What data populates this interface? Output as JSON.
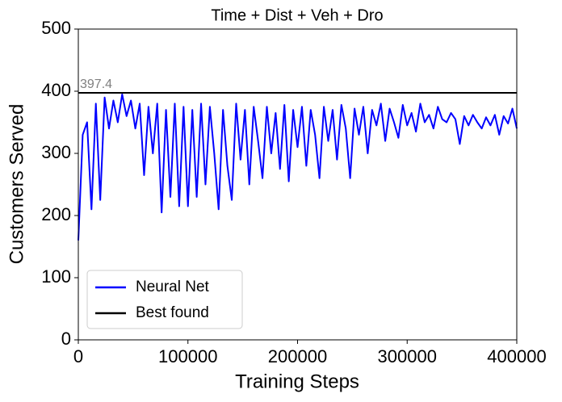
{
  "chart_data": {
    "type": "line",
    "title": "Time + Dist + Veh + Dro",
    "x_label": "Training Steps",
    "y_label": "Customers Served",
    "annotation": "397.4",
    "xlim": [
      0,
      400000
    ],
    "xticks": [
      0,
      100000,
      200000,
      300000,
      400000
    ],
    "ylim": [
      0,
      500
    ],
    "yticks": [
      0,
      100,
      200,
      300,
      400,
      500
    ],
    "legend": "lower left",
    "series": [
      {
        "name": "Neural Net",
        "color": "#0000ff",
        "x": [
          0,
          4000,
          8000,
          12000,
          16000,
          20000,
          24000,
          28000,
          32000,
          36000,
          40000,
          44000,
          48000,
          52000,
          56000,
          60000,
          64000,
          68000,
          72000,
          76000,
          80000,
          84000,
          88000,
          92000,
          96000,
          100000,
          104000,
          108000,
          112000,
          116000,
          120000,
          124000,
          128000,
          132000,
          136000,
          140000,
          144000,
          148000,
          152000,
          156000,
          160000,
          164000,
          168000,
          172000,
          176000,
          180000,
          184000,
          188000,
          192000,
          196000,
          200000,
          204000,
          208000,
          212000,
          216000,
          220000,
          224000,
          228000,
          232000,
          236000,
          240000,
          244000,
          248000,
          252000,
          256000,
          260000,
          264000,
          268000,
          272000,
          276000,
          280000,
          284000,
          288000,
          292000,
          296000,
          300000,
          304000,
          308000,
          312000,
          316000,
          320000,
          324000,
          328000,
          332000,
          336000,
          340000,
          344000,
          348000,
          352000,
          356000,
          360000,
          364000,
          368000,
          372000,
          376000,
          380000,
          384000,
          388000,
          392000,
          396000,
          400000
        ],
        "values": [
          160,
          330,
          350,
          210,
          380,
          225,
          390,
          340,
          385,
          350,
          395,
          360,
          385,
          340,
          380,
          265,
          375,
          300,
          380,
          205,
          370,
          230,
          380,
          215,
          375,
          215,
          370,
          230,
          380,
          250,
          375,
          300,
          210,
          370,
          280,
          225,
          380,
          290,
          370,
          250,
          375,
          320,
          260,
          375,
          300,
          365,
          275,
          378,
          255,
          370,
          310,
          375,
          280,
          370,
          330,
          260,
          375,
          320,
          370,
          290,
          378,
          340,
          260,
          372,
          330,
          375,
          300,
          370,
          345,
          380,
          320,
          372,
          350,
          325,
          378,
          345,
          365,
          335,
          380,
          350,
          362,
          340,
          375,
          355,
          350,
          365,
          355,
          315,
          360,
          345,
          362,
          350,
          340,
          358,
          345,
          362,
          330,
          360,
          348,
          372,
          340
        ]
      },
      {
        "name": "Best found",
        "color": "#000000",
        "x": [
          0,
          400000
        ],
        "values": [
          397.4,
          397.4
        ]
      }
    ]
  }
}
